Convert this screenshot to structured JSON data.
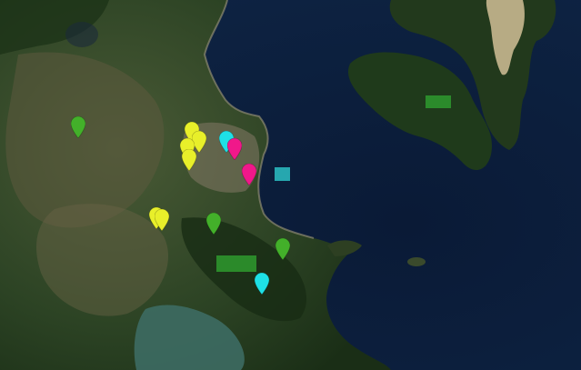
{
  "map": {
    "colors": {
      "sea": "#0d1f3d",
      "land_dark": "#1d3418",
      "land_mid": "#32482a",
      "land_dry": "#6a6245",
      "urban": "#8a8068",
      "sand": "#c8b890",
      "lagoon": "#3d6b63"
    },
    "markers": [
      {
        "id": "green-pin-1",
        "kind": "pin",
        "color": "#43b02a"
      },
      {
        "id": "yellow-pin-1",
        "kind": "pin",
        "color": "#e8ef2a"
      },
      {
        "id": "yellow-pin-2",
        "kind": "pin",
        "color": "#e8ef2a"
      },
      {
        "id": "yellow-pin-3",
        "kind": "pin",
        "color": "#e8ef2a"
      },
      {
        "id": "yellow-pin-4",
        "kind": "pin",
        "color": "#e8ef2a"
      },
      {
        "id": "cyan-pin-1",
        "kind": "pin",
        "color": "#1ee0e6"
      },
      {
        "id": "magenta-pin-1",
        "kind": "pin",
        "color": "#f0188a"
      },
      {
        "id": "magenta-pin-2",
        "kind": "pin",
        "color": "#f0188a"
      },
      {
        "id": "yellow-pin-5",
        "kind": "pin",
        "color": "#e8ef2a"
      },
      {
        "id": "yellow-pin-6",
        "kind": "pin",
        "color": "#e8ef2a"
      },
      {
        "id": "green-pin-2",
        "kind": "pin",
        "color": "#43b02a"
      },
      {
        "id": "green-pin-3",
        "kind": "pin",
        "color": "#43b02a"
      },
      {
        "id": "cyan-pin-2",
        "kind": "pin",
        "color": "#1ee0e6"
      },
      {
        "id": "cyan-square-1",
        "kind": "rect",
        "color": "#2cbfc4"
      },
      {
        "id": "green-rect-1",
        "kind": "rect",
        "color": "#2e9a2e"
      },
      {
        "id": "green-rect-2",
        "kind": "rect",
        "color": "#2e9a2e"
      }
    ]
  }
}
